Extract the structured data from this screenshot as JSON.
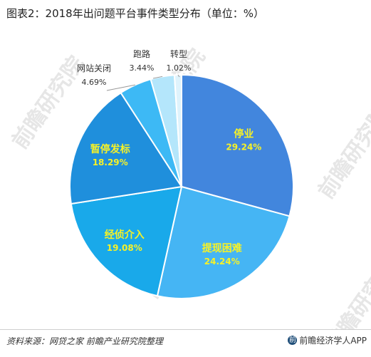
{
  "page": {
    "title": "图表2：2018年出问题平台事件类型分布（单位：%）",
    "source": "资料来源：网贷之家 前瞻产业研究院整理",
    "brand": "前瞻经济学人APP",
    "watermark": "前瞻研究院"
  },
  "chart_data": {
    "type": "pie",
    "title": "图表2：2018年出问题平台事件类型分布（单位：%）",
    "unit": "%",
    "labels": [
      "停业",
      "提现困难",
      "经侦介入",
      "暂停发标",
      "网站关闭",
      "跑路",
      "转型"
    ],
    "values": [
      29.24,
      24.24,
      19.08,
      18.29,
      4.69,
      3.44,
      1.02
    ],
    "display_values": [
      "29.24%",
      "24.24%",
      "19.08%",
      "18.29%",
      "4.69%",
      "3.44%",
      "1.02%"
    ],
    "colors": [
      "#4286dd",
      "#45b5f4",
      "#19a9ea",
      "#1f8fdc",
      "#3db9f5",
      "#b4e6fb",
      "#dff3fc"
    ],
    "label_position": [
      "inside",
      "inside",
      "inside",
      "inside",
      "outside",
      "outside",
      "outside"
    ],
    "start_angle": "12 o'clock",
    "direction": "clockwise",
    "legend": "none"
  }
}
